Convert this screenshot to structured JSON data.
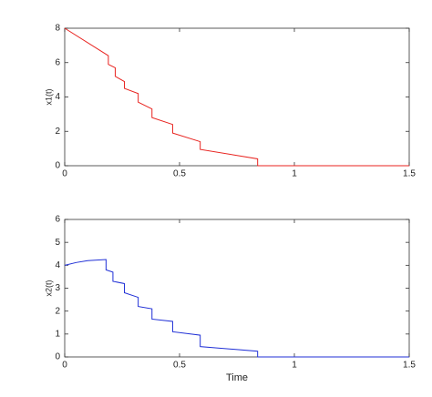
{
  "chart_data": [
    {
      "type": "line",
      "ylabel": "x1(t)",
      "x": [
        0,
        0.19,
        0.19,
        0.22,
        0.22,
        0.26,
        0.26,
        0.32,
        0.32,
        0.38,
        0.38,
        0.47,
        0.47,
        0.59,
        0.59,
        0.84,
        0.84,
        1.5
      ],
      "series": [
        {
          "color": "#e8231f",
          "values": [
            8,
            6.4,
            5.9,
            5.7,
            5.2,
            4.9,
            4.5,
            4.2,
            3.7,
            3.3,
            2.8,
            2.4,
            1.9,
            1.4,
            0.95,
            0.4,
            0,
            0
          ]
        }
      ],
      "xlim": [
        0,
        1.5
      ],
      "xticks": [
        0,
        0.5,
        1,
        1.5
      ],
      "ylim": [
        0,
        8
      ],
      "yticks": [
        0,
        2,
        4,
        6,
        8
      ]
    },
    {
      "type": "line",
      "ylabel": "x2(t)",
      "xlabel": "Time",
      "x": [
        0,
        0.05,
        0.1,
        0.18,
        0.18,
        0.21,
        0.21,
        0.26,
        0.26,
        0.32,
        0.32,
        0.38,
        0.38,
        0.47,
        0.47,
        0.59,
        0.59,
        0.84,
        0.84,
        1.5
      ],
      "series": [
        {
          "color": "#1f2fd6",
          "values": [
            4,
            4.12,
            4.2,
            4.25,
            3.8,
            3.7,
            3.3,
            3.2,
            2.8,
            2.6,
            2.2,
            2.1,
            1.65,
            1.55,
            1.1,
            0.95,
            0.45,
            0.25,
            0,
            0
          ]
        }
      ],
      "xlim": [
        0,
        1.5
      ],
      "xticks": [
        0,
        0.5,
        1,
        1.5
      ],
      "ylim": [
        0,
        6
      ],
      "yticks": [
        0,
        1,
        2,
        3,
        4,
        5,
        6
      ]
    }
  ]
}
